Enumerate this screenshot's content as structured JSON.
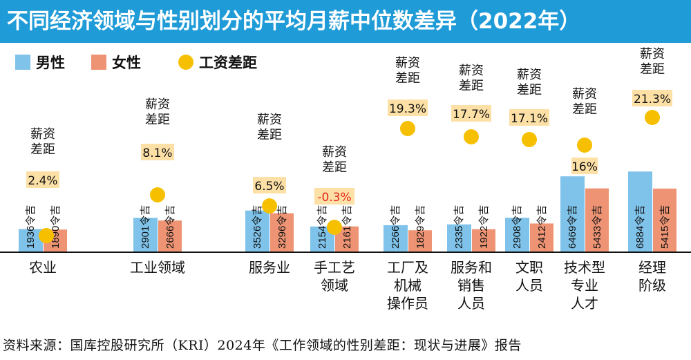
{
  "title": "不同经济领域与性别划分的平均月薪中位数差异（2022年）",
  "source": "资料来源：国库控股研究所（KRI）2024年《工作领域的性别差距：现状与进展》报告",
  "chart_data": {
    "type": "bar",
    "legend": [
      {
        "name": "男性",
        "color": "#7fc3ea",
        "shape": "square"
      },
      {
        "name": "女性",
        "color": "#ee9474",
        "shape": "square"
      },
      {
        "name": "工资差距",
        "color": "#f6c000",
        "shape": "circle"
      }
    ],
    "categories": [
      [
        "农业"
      ],
      [
        "工业领域"
      ],
      [
        "服务业"
      ],
      [
        "手工艺",
        "领域"
      ],
      [
        "工厂及",
        "机械",
        "操作员"
      ],
      [
        "服务和",
        "销售",
        "人员"
      ],
      [
        "文职",
        "人员"
      ],
      [
        "技术型",
        "专业",
        "人才"
      ],
      [
        "经理",
        "阶级"
      ]
    ],
    "series": [
      {
        "name": "男性",
        "color": "#7fc3ea",
        "values": [
          1936,
          2901,
          3526,
          2154,
          2266,
          2335,
          2908,
          6469,
          6884
        ],
        "labels": [
          "1936令吉",
          "2901令吉",
          "3526令吉",
          "2154令吉",
          "2266令吉",
          "2335令吉",
          "2908令吉",
          "6469令吉",
          "6884令吉"
        ]
      },
      {
        "name": "女性",
        "color": "#ee9474",
        "values": [
          1890,
          2666,
          3296,
          2161,
          1829,
          1922,
          2412,
          5433,
          5415
        ],
        "labels": [
          "1890令吉",
          "2666令吉",
          "3296令吉",
          "2161令吉",
          "1829令吉",
          "1922令吉",
          "2412令吉",
          "5433令吉",
          "5415令吉"
        ]
      }
    ],
    "gap": {
      "name": "工资差距",
      "word": [
        "薪资",
        "差距"
      ],
      "values": [
        2.4,
        8.1,
        6.5,
        -0.3,
        19.3,
        17.7,
        17.1,
        16,
        21.3
      ],
      "labels": [
        "2.4%",
        "8.1%",
        "6.5%",
        "-0.3%",
        "19.3%",
        "17.7%",
        "17.1%",
        "16%",
        "21.3%"
      ]
    },
    "colors": {
      "male": "#7fc3ea",
      "female": "#ee9474",
      "gap_dot": "#f6c000",
      "label_box": "#fce0a6",
      "negative": "#e8211a"
    }
  }
}
